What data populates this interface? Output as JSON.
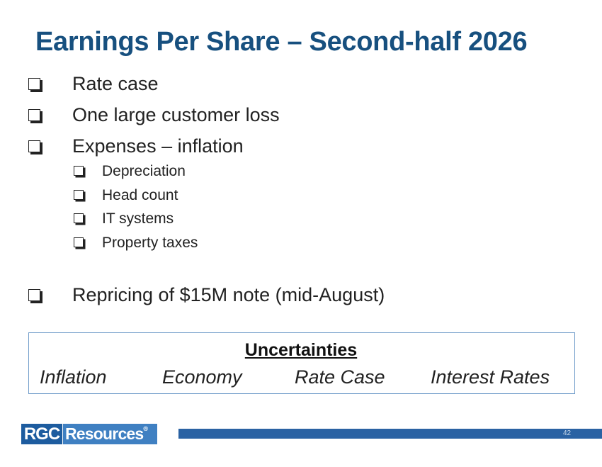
{
  "header": {
    "title": "Earnings Per Share – Second-half 2026"
  },
  "bullets": [
    {
      "text": "Rate case"
    },
    {
      "text": "One large customer loss"
    },
    {
      "text": "Expenses – inflation",
      "sub": [
        "Depreciation",
        "Head count",
        "IT systems",
        "Property taxes"
      ]
    },
    {
      "text": "Repricing of $15M note (mid-August)"
    }
  ],
  "box": {
    "title": "Uncertainties",
    "items": [
      "Inflation",
      "Economy",
      "Rate Case",
      "Interest Rates"
    ]
  },
  "footer": {
    "logo": {
      "left": "RGC",
      "right": "Resources",
      "mark": "®"
    },
    "page": "42"
  }
}
